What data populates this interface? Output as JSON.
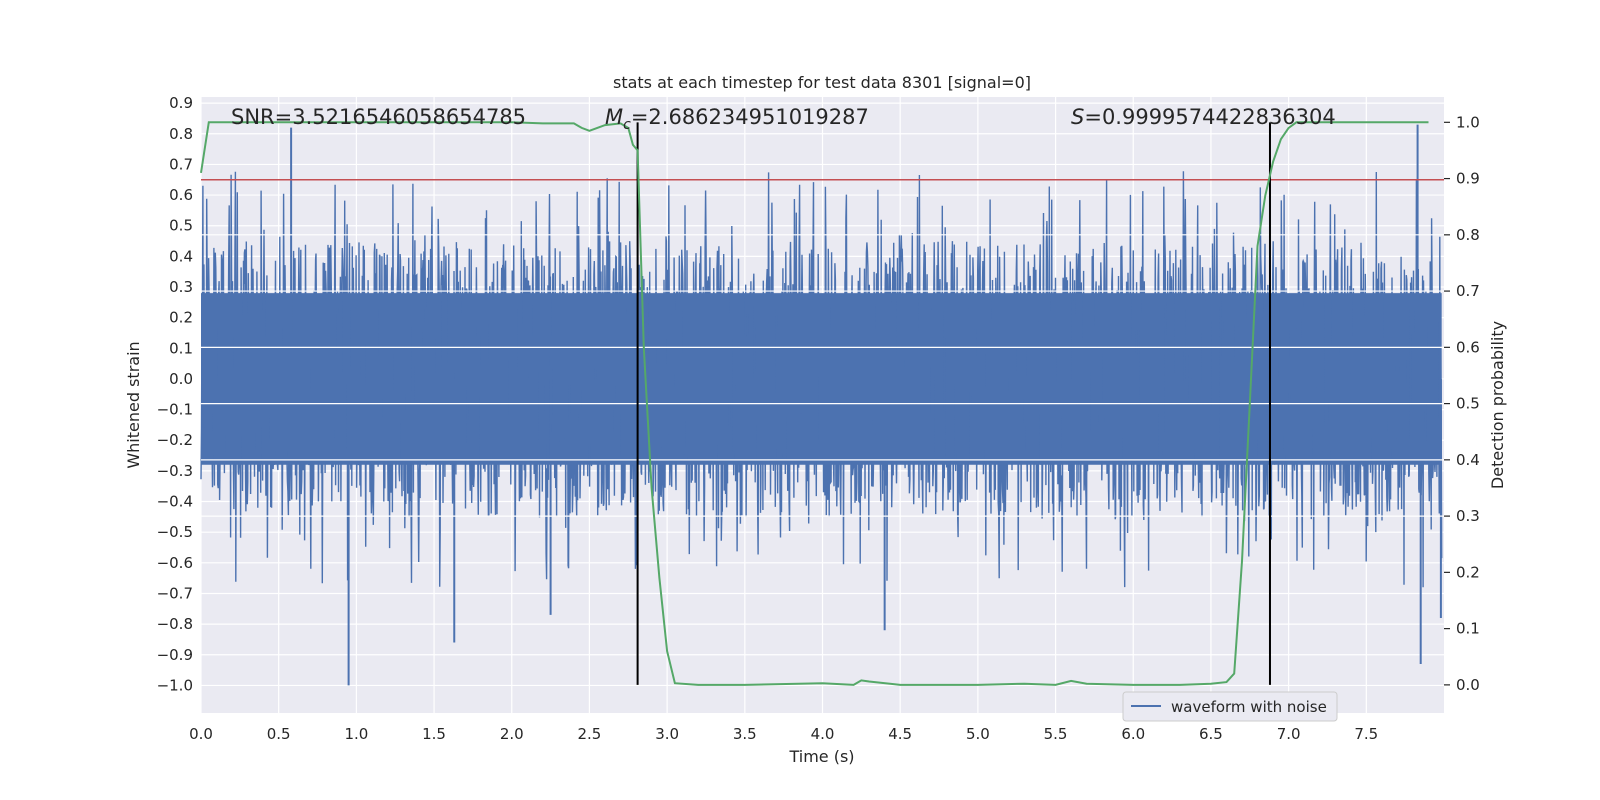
{
  "chart_data": {
    "type": "line",
    "title": "stats at each timestep for test data 8301 [signal=0]",
    "xlabel": "Time (s)",
    "ylabel": "Whitened strain",
    "ylabel_right": "Detection probability",
    "xlim": [
      0.0,
      8.0
    ],
    "ylim": [
      -1.09,
      0.92
    ],
    "ylim_right": [
      -0.05,
      1.045
    ],
    "x_ticks": [
      0.0,
      0.5,
      1.0,
      1.5,
      2.0,
      2.5,
      3.0,
      3.5,
      4.0,
      4.5,
      5.0,
      5.5,
      6.0,
      6.5,
      7.0,
      7.5
    ],
    "x_tick_labels": [
      "0.0",
      "0.5",
      "1.0",
      "1.5",
      "2.0",
      "2.5",
      "3.0",
      "3.5",
      "4.0",
      "4.5",
      "5.0",
      "5.5",
      "6.0",
      "6.5",
      "7.0",
      "7.5"
    ],
    "y_ticks": [
      0.9,
      0.8,
      0.7,
      0.6,
      0.5,
      0.4,
      0.3,
      0.2,
      0.1,
      0.0,
      -0.1,
      -0.2,
      -0.3,
      -0.4,
      -0.5,
      -0.6,
      -0.7,
      -0.8,
      -0.9,
      -1.0
    ],
    "y_tick_labels": [
      "0.9",
      "0.8",
      "0.7",
      "0.6",
      "0.5",
      "0.4",
      "0.3",
      "0.2",
      "0.1",
      "0.0",
      "−0.1",
      "−0.2",
      "−0.3",
      "−0.4",
      "−0.5",
      "−0.6",
      "−0.7",
      "−0.8",
      "−0.9",
      "−1.0"
    ],
    "y_right_ticks": [
      1.0,
      0.9,
      0.8,
      0.7,
      0.6,
      0.5,
      0.4,
      0.3,
      0.2,
      0.1,
      0.0
    ],
    "y_right_tick_labels": [
      "1.0",
      "0.9",
      "0.8",
      "0.7",
      "0.6",
      "0.5",
      "0.4",
      "0.3",
      "0.2",
      "0.1",
      "0.0"
    ],
    "annotations": {
      "snr": "SNR=3.5216546058654785",
      "mc_sym": "M",
      "mc_sub": "c",
      "mc_val": "=2.686234951019287",
      "s_sym": "S",
      "s_val": "=0.9999574422836304"
    },
    "threshold": {
      "value": 0.65,
      "axis": "left",
      "color": "#c44e52"
    },
    "vlines": [
      {
        "x": 2.81,
        "color": "#000000"
      },
      {
        "x": 6.88,
        "color": "#000000"
      }
    ],
    "waveform": {
      "name": "waveform with noise",
      "color": "#4c72b0",
      "core_amplitude": 0.28,
      "typical_peak": 0.45,
      "max_value": 0.83,
      "min_value": -1.0,
      "notable_spikes": [
        {
          "x": 0.58,
          "y": 0.82
        },
        {
          "x": 0.95,
          "y": -1.0
        },
        {
          "x": 1.63,
          "y": -0.86
        },
        {
          "x": 2.25,
          "y": -0.77
        },
        {
          "x": 4.4,
          "y": -0.82
        },
        {
          "x": 7.83,
          "y": 0.83
        },
        {
          "x": 7.85,
          "y": -0.93
        },
        {
          "x": 7.98,
          "y": -0.78
        }
      ]
    },
    "probability_series": {
      "name": "detection probability",
      "color": "#55a868",
      "x": [
        0.0,
        0.05,
        0.1,
        0.3,
        0.5,
        1.0,
        1.5,
        2.0,
        2.2,
        2.4,
        2.45,
        2.5,
        2.6,
        2.7,
        2.75,
        2.78,
        2.81,
        2.85,
        2.9,
        2.95,
        3.0,
        3.05,
        3.2,
        3.5,
        4.0,
        4.2,
        4.25,
        4.3,
        4.5,
        5.0,
        5.3,
        5.5,
        5.6,
        5.7,
        6.0,
        6.3,
        6.5,
        6.6,
        6.65,
        6.7,
        6.75,
        6.8,
        6.85,
        6.9,
        6.95,
        7.0,
        7.05,
        7.2,
        7.5,
        7.9
      ],
      "y": [
        0.91,
        1.0,
        1.0,
        1.0,
        1.0,
        1.0,
        1.0,
        1.0,
        0.998,
        0.998,
        0.99,
        0.985,
        0.995,
        0.998,
        0.99,
        0.96,
        0.95,
        0.6,
        0.35,
        0.19,
        0.06,
        0.003,
        0.0,
        0.0,
        0.003,
        0.0,
        0.008,
        0.006,
        0.0,
        0.0,
        0.002,
        0.0,
        0.007,
        0.002,
        0.0,
        0.0,
        0.002,
        0.005,
        0.02,
        0.22,
        0.5,
        0.78,
        0.87,
        0.93,
        0.97,
        0.99,
        1.0,
        1.0,
        1.0,
        1.0
      ]
    },
    "legend": {
      "label": "waveform with noise",
      "location": "lower-right"
    }
  }
}
